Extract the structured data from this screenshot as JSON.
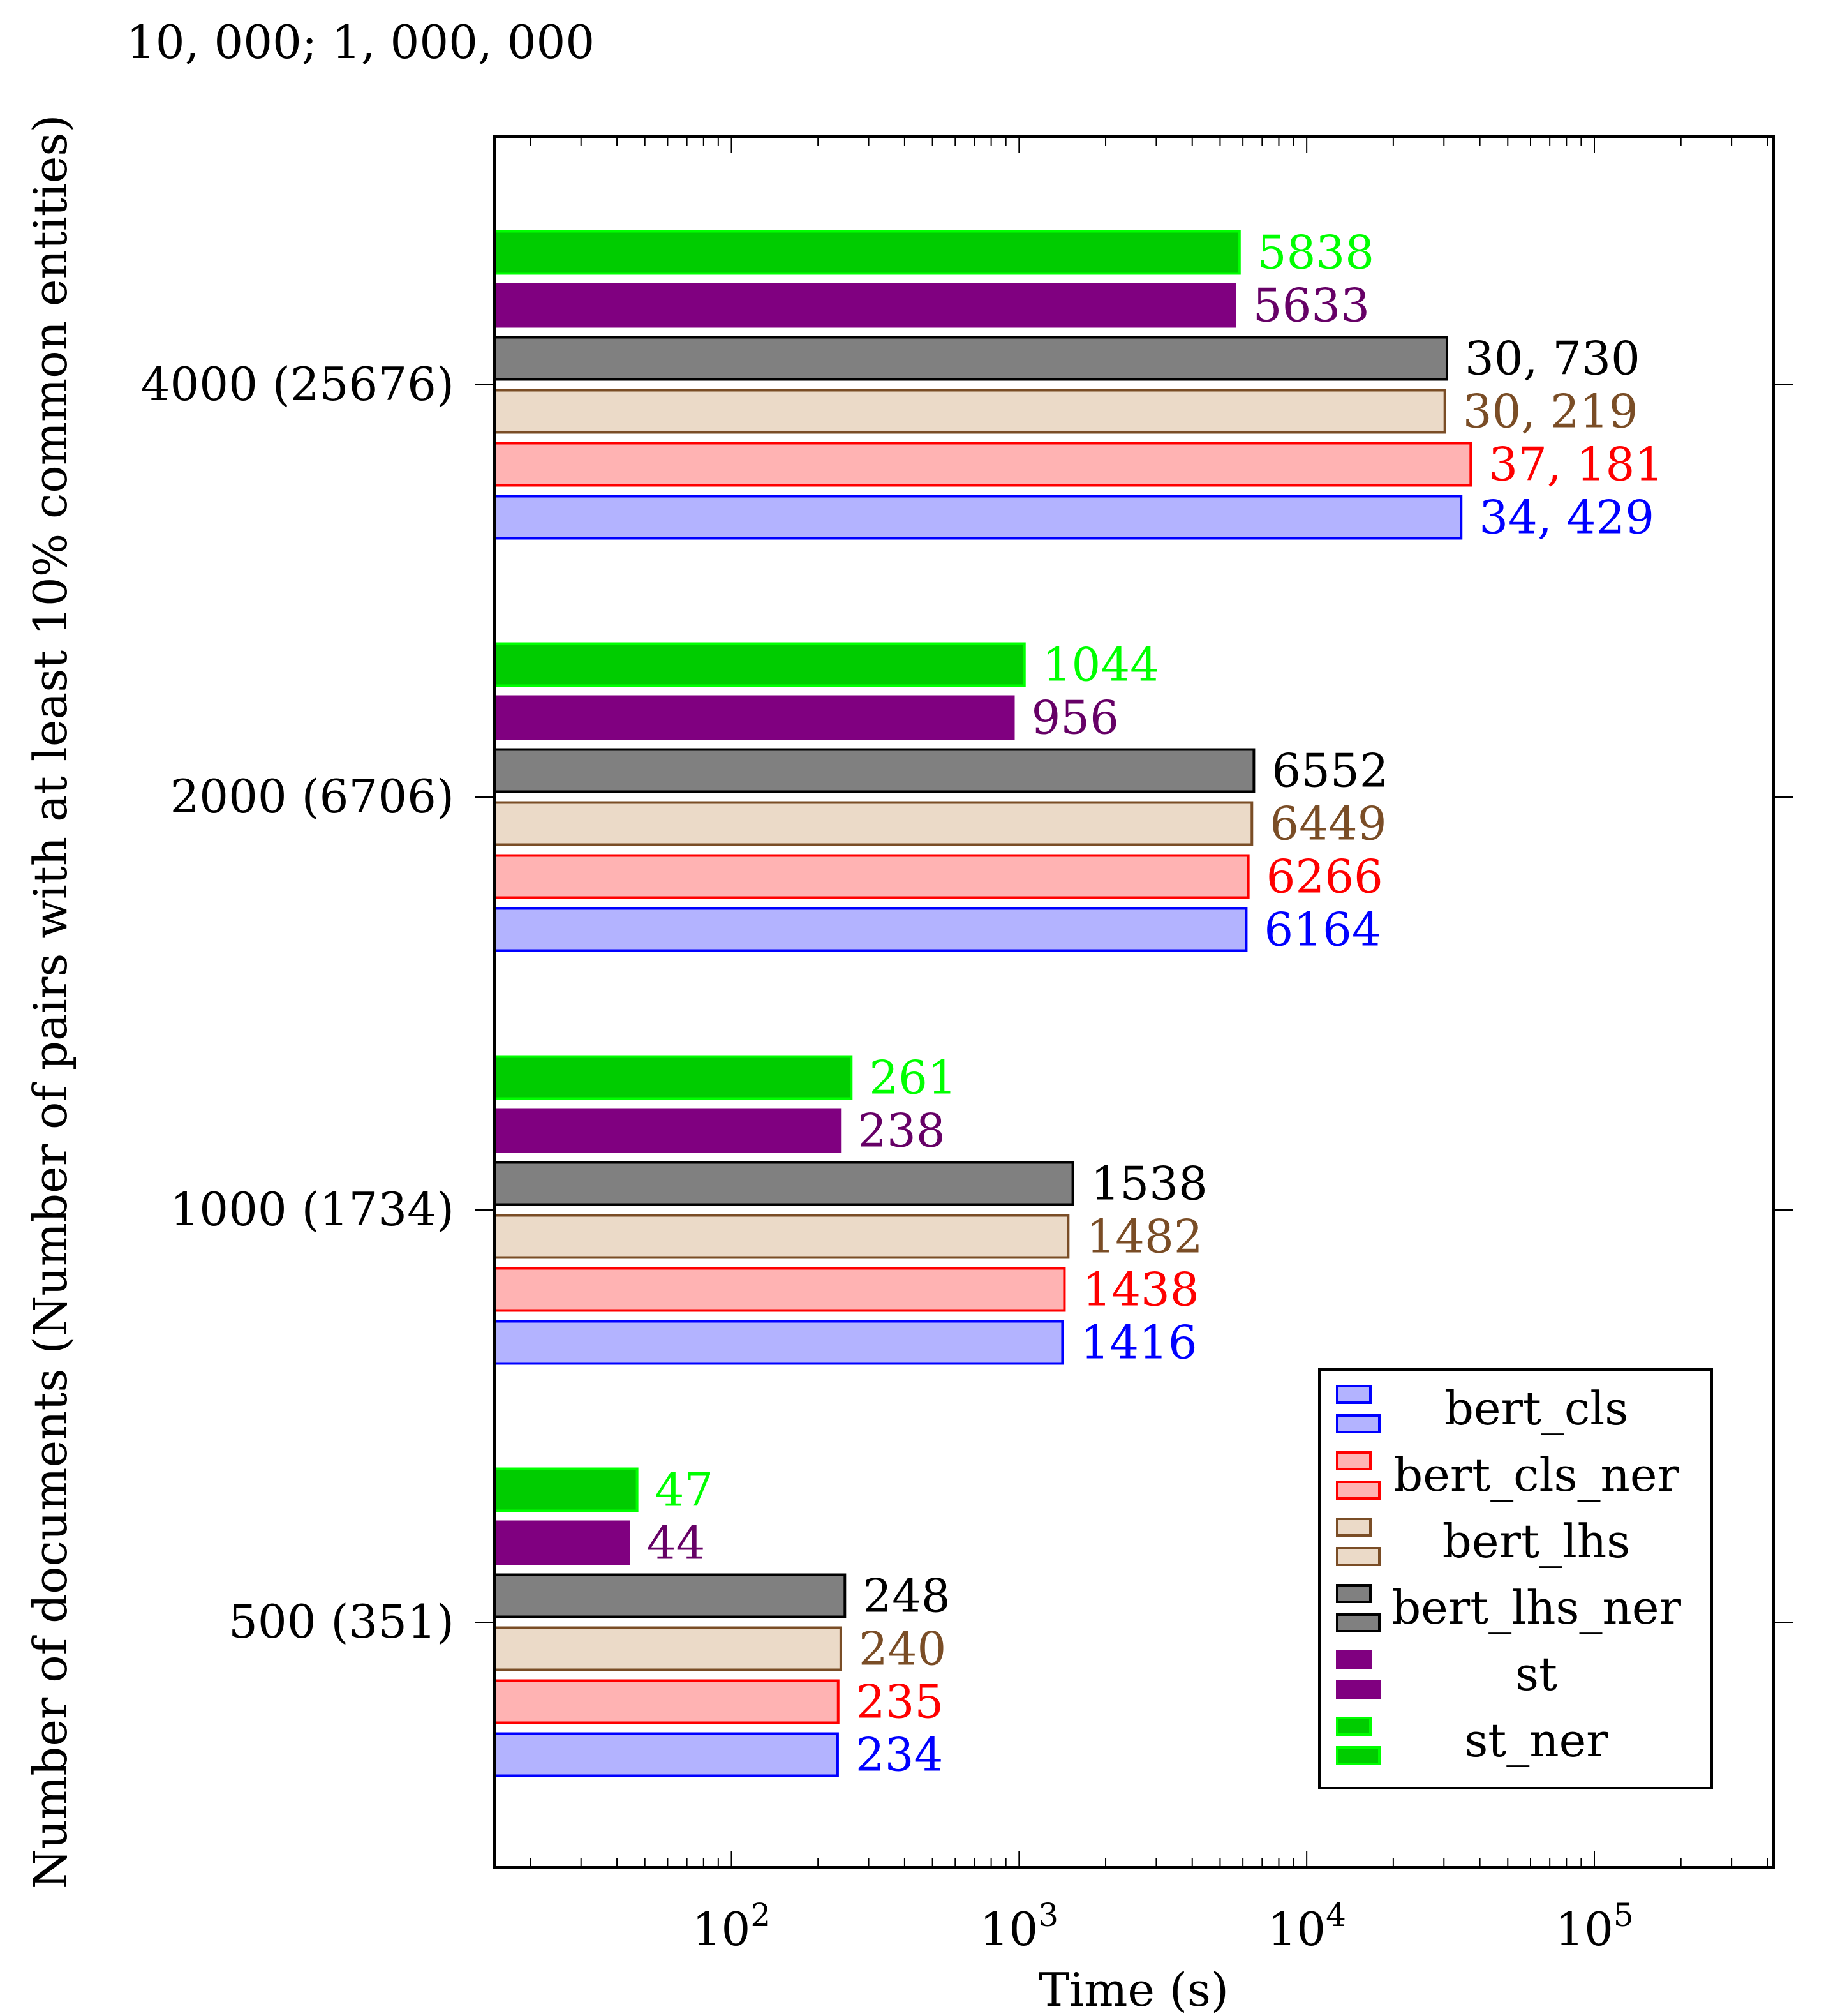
{
  "header_note": "10, 000; 1, 000, 000",
  "chart_data": {
    "type": "bar",
    "orientation": "horizontal",
    "x_scale": "log",
    "xlabel": "Time (s)",
    "ylabel": "Number of documents (Number of pairs with at least 10% common entities)",
    "xlim": [
      15,
      420000
    ],
    "x_ticks": [
      {
        "value": 100,
        "base": "10",
        "exp": "2"
      },
      {
        "value": 1000,
        "base": "10",
        "exp": "3"
      },
      {
        "value": 10000,
        "base": "10",
        "exp": "4"
      },
      {
        "value": 100000,
        "base": "10",
        "exp": "5"
      }
    ],
    "categories": [
      "500 (351)",
      "1000 (1734)",
      "2000 (6706)",
      "4000 (25676)"
    ],
    "legend_position": "bottom-right",
    "series": [
      {
        "name": "bert_cls",
        "fill": "#b3b3ff",
        "stroke": "#0000ff",
        "label_color": "#0000ff",
        "values": [
          234,
          1416,
          6164,
          34429
        ],
        "labels": [
          "234",
          "1416",
          "6164",
          "34, 429"
        ]
      },
      {
        "name": "bert_cls_ner",
        "fill": "#ffb3b3",
        "stroke": "#ff0000",
        "label_color": "#ff0000",
        "values": [
          235,
          1438,
          6266,
          37181
        ],
        "labels": [
          "235",
          "1438",
          "6266",
          "37, 181"
        ]
      },
      {
        "name": "bert_lhs",
        "fill": "#ebdac8",
        "stroke": "#7a4d26",
        "label_color": "#7a4d26",
        "values": [
          240,
          1482,
          6449,
          30219
        ],
        "labels": [
          "240",
          "1482",
          "6449",
          "30, 219"
        ]
      },
      {
        "name": "bert_lhs_ner",
        "fill": "#808080",
        "stroke": "#000000",
        "label_color": "#000000",
        "values": [
          248,
          1538,
          6552,
          30730
        ],
        "labels": [
          "248",
          "1538",
          "6552",
          "30, 730"
        ]
      },
      {
        "name": "st",
        "fill": "#800080",
        "stroke": "#800080",
        "label_color": "#660066",
        "values": [
          44,
          238,
          956,
          5633
        ],
        "labels": [
          "44",
          "238",
          "956",
          "5633"
        ]
      },
      {
        "name": "st_ner",
        "fill": "#00cc00",
        "stroke": "#00ff00",
        "label_color": "#00ff00",
        "values": [
          47,
          261,
          1044,
          5838
        ],
        "labels": [
          "47",
          "261",
          "1044",
          "5838"
        ]
      }
    ]
  }
}
